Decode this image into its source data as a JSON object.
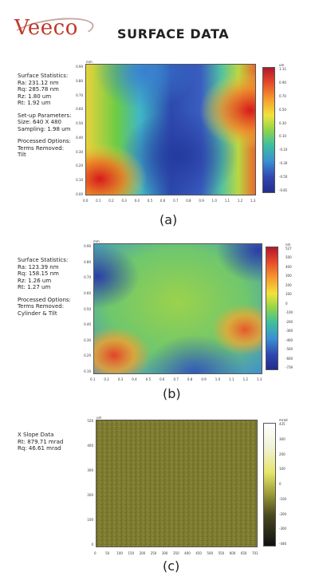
{
  "header": {
    "brand": "Veeco",
    "title": "SURFACE DATA"
  },
  "panel_a": {
    "label": "(a)",
    "unit_x": "mm",
    "unit_scale": "um",
    "stats_heading": "Surface Statistics:",
    "stats": [
      "Ra: 231.12 nm",
      "Rq: 285.78 nm",
      "Rz: 1.80 um",
      "Rt: 1.92 um"
    ],
    "setup_heading": "Set-up Parameters:",
    "setup": [
      "Size: 640 X 480",
      "Sampling: 1.98 um"
    ],
    "options_heading": "Processed Options:",
    "options": [
      "Terms Removed:",
      "Tilt"
    ],
    "y_ticks": [
      "0.90",
      "0.80",
      "0.70",
      "0.60",
      "0.50",
      "0.40",
      "0.30",
      "0.20",
      "0.10",
      "0.00"
    ],
    "x_ticks": [
      "0.0",
      "0.1",
      "0.2",
      "0.3",
      "0.4",
      "0.5",
      "0.6",
      "0.7",
      "0.8",
      "0.9",
      "1.0",
      "1.1",
      "1.2",
      "1.3"
    ],
    "scale_ticks": [
      "1.11",
      "0.90",
      "0.70",
      "0.50",
      "0.30",
      "0.10",
      "-0.10",
      "-0.30",
      "-0.50",
      "-0.81"
    ]
  },
  "panel_b": {
    "label": "(b)",
    "unit_x": "mm",
    "unit_scale": "nm",
    "stats_heading": "Surface Statistics:",
    "stats": [
      "Ra: 123.39 nm",
      "Rq: 158.15 nm",
      "Rz: 1.26 um",
      "Rt: 1.27 um"
    ],
    "options_heading": "Processed Options:",
    "options": [
      "Terms Removed:",
      "Cylinder & Tilt"
    ],
    "y_ticks": [
      "0.90",
      "0.80",
      "0.70",
      "0.60",
      "0.50",
      "0.40",
      "0.30",
      "0.20",
      "0.10"
    ],
    "x_ticks": [
      "0.1",
      "0.2",
      "0.3",
      "0.4",
      "0.5",
      "0.6",
      "0.7",
      "0.8",
      "0.9",
      "1.0",
      "1.1",
      "1.2",
      "1.3"
    ],
    "scale_ticks": [
      "527",
      "500",
      "400",
      "300",
      "200",
      "100",
      "0",
      "-100",
      "-200",
      "-300",
      "-400",
      "-500",
      "-600",
      "-739"
    ]
  },
  "panel_c": {
    "label": "(c)",
    "unit_x": "um",
    "unit_scale": "mrad",
    "heading": "X Slope Data",
    "stats": [
      "Rt: 879.71 mrad",
      "Rq: 46.61 mrad"
    ],
    "y_ticks": [
      "526",
      "400",
      "300",
      "200",
      "100",
      "0"
    ],
    "x_ticks": [
      "0",
      "50",
      "100",
      "150",
      "200",
      "250",
      "300",
      "350",
      "400",
      "450",
      "500",
      "550",
      "600",
      "650",
      "701"
    ],
    "scale_ticks": [
      "435",
      "300",
      "200",
      "100",
      "0",
      "-100",
      "-200",
      "-300",
      "-446"
    ]
  },
  "colors": {
    "jet_red": "#d7191c",
    "jet_green": "#4cc24b",
    "jet_blue": "#2b3ea8",
    "olive": "#7c7a2e",
    "brand_red": "#c0392b"
  }
}
